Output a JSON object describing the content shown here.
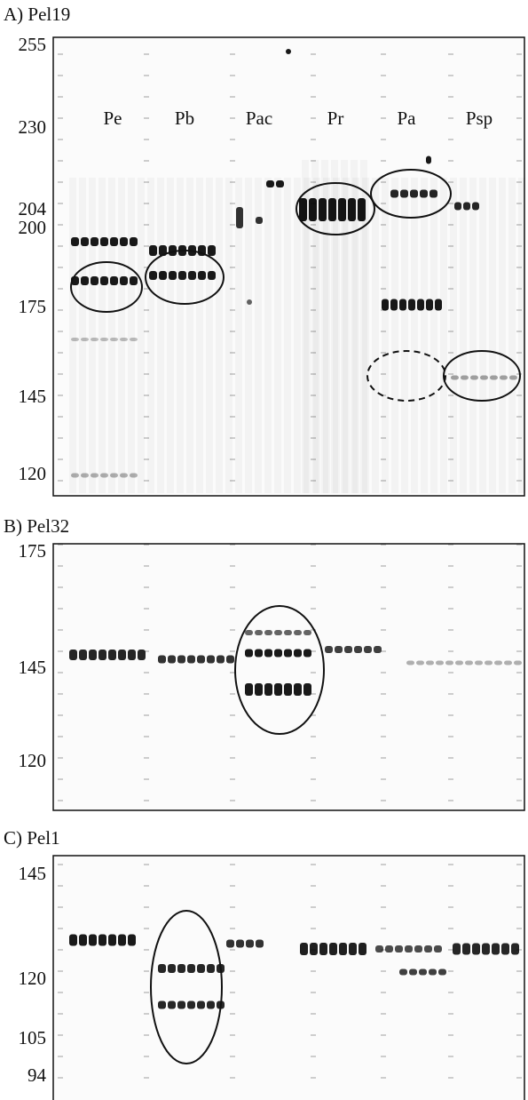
{
  "panels": [
    {
      "title": "A) Pel19",
      "ticks": [
        255,
        230,
        204,
        200,
        175,
        145,
        120
      ],
      "lanes": [
        "Pe",
        "Pb",
        "Pac",
        "Pr",
        "Pa",
        "Psp"
      ]
    },
    {
      "title": "B) Pel32",
      "ticks": [
        175,
        145,
        120
      ]
    },
    {
      "title": "C) Pel1",
      "ticks": [
        145,
        120,
        105,
        94
      ]
    }
  ]
}
